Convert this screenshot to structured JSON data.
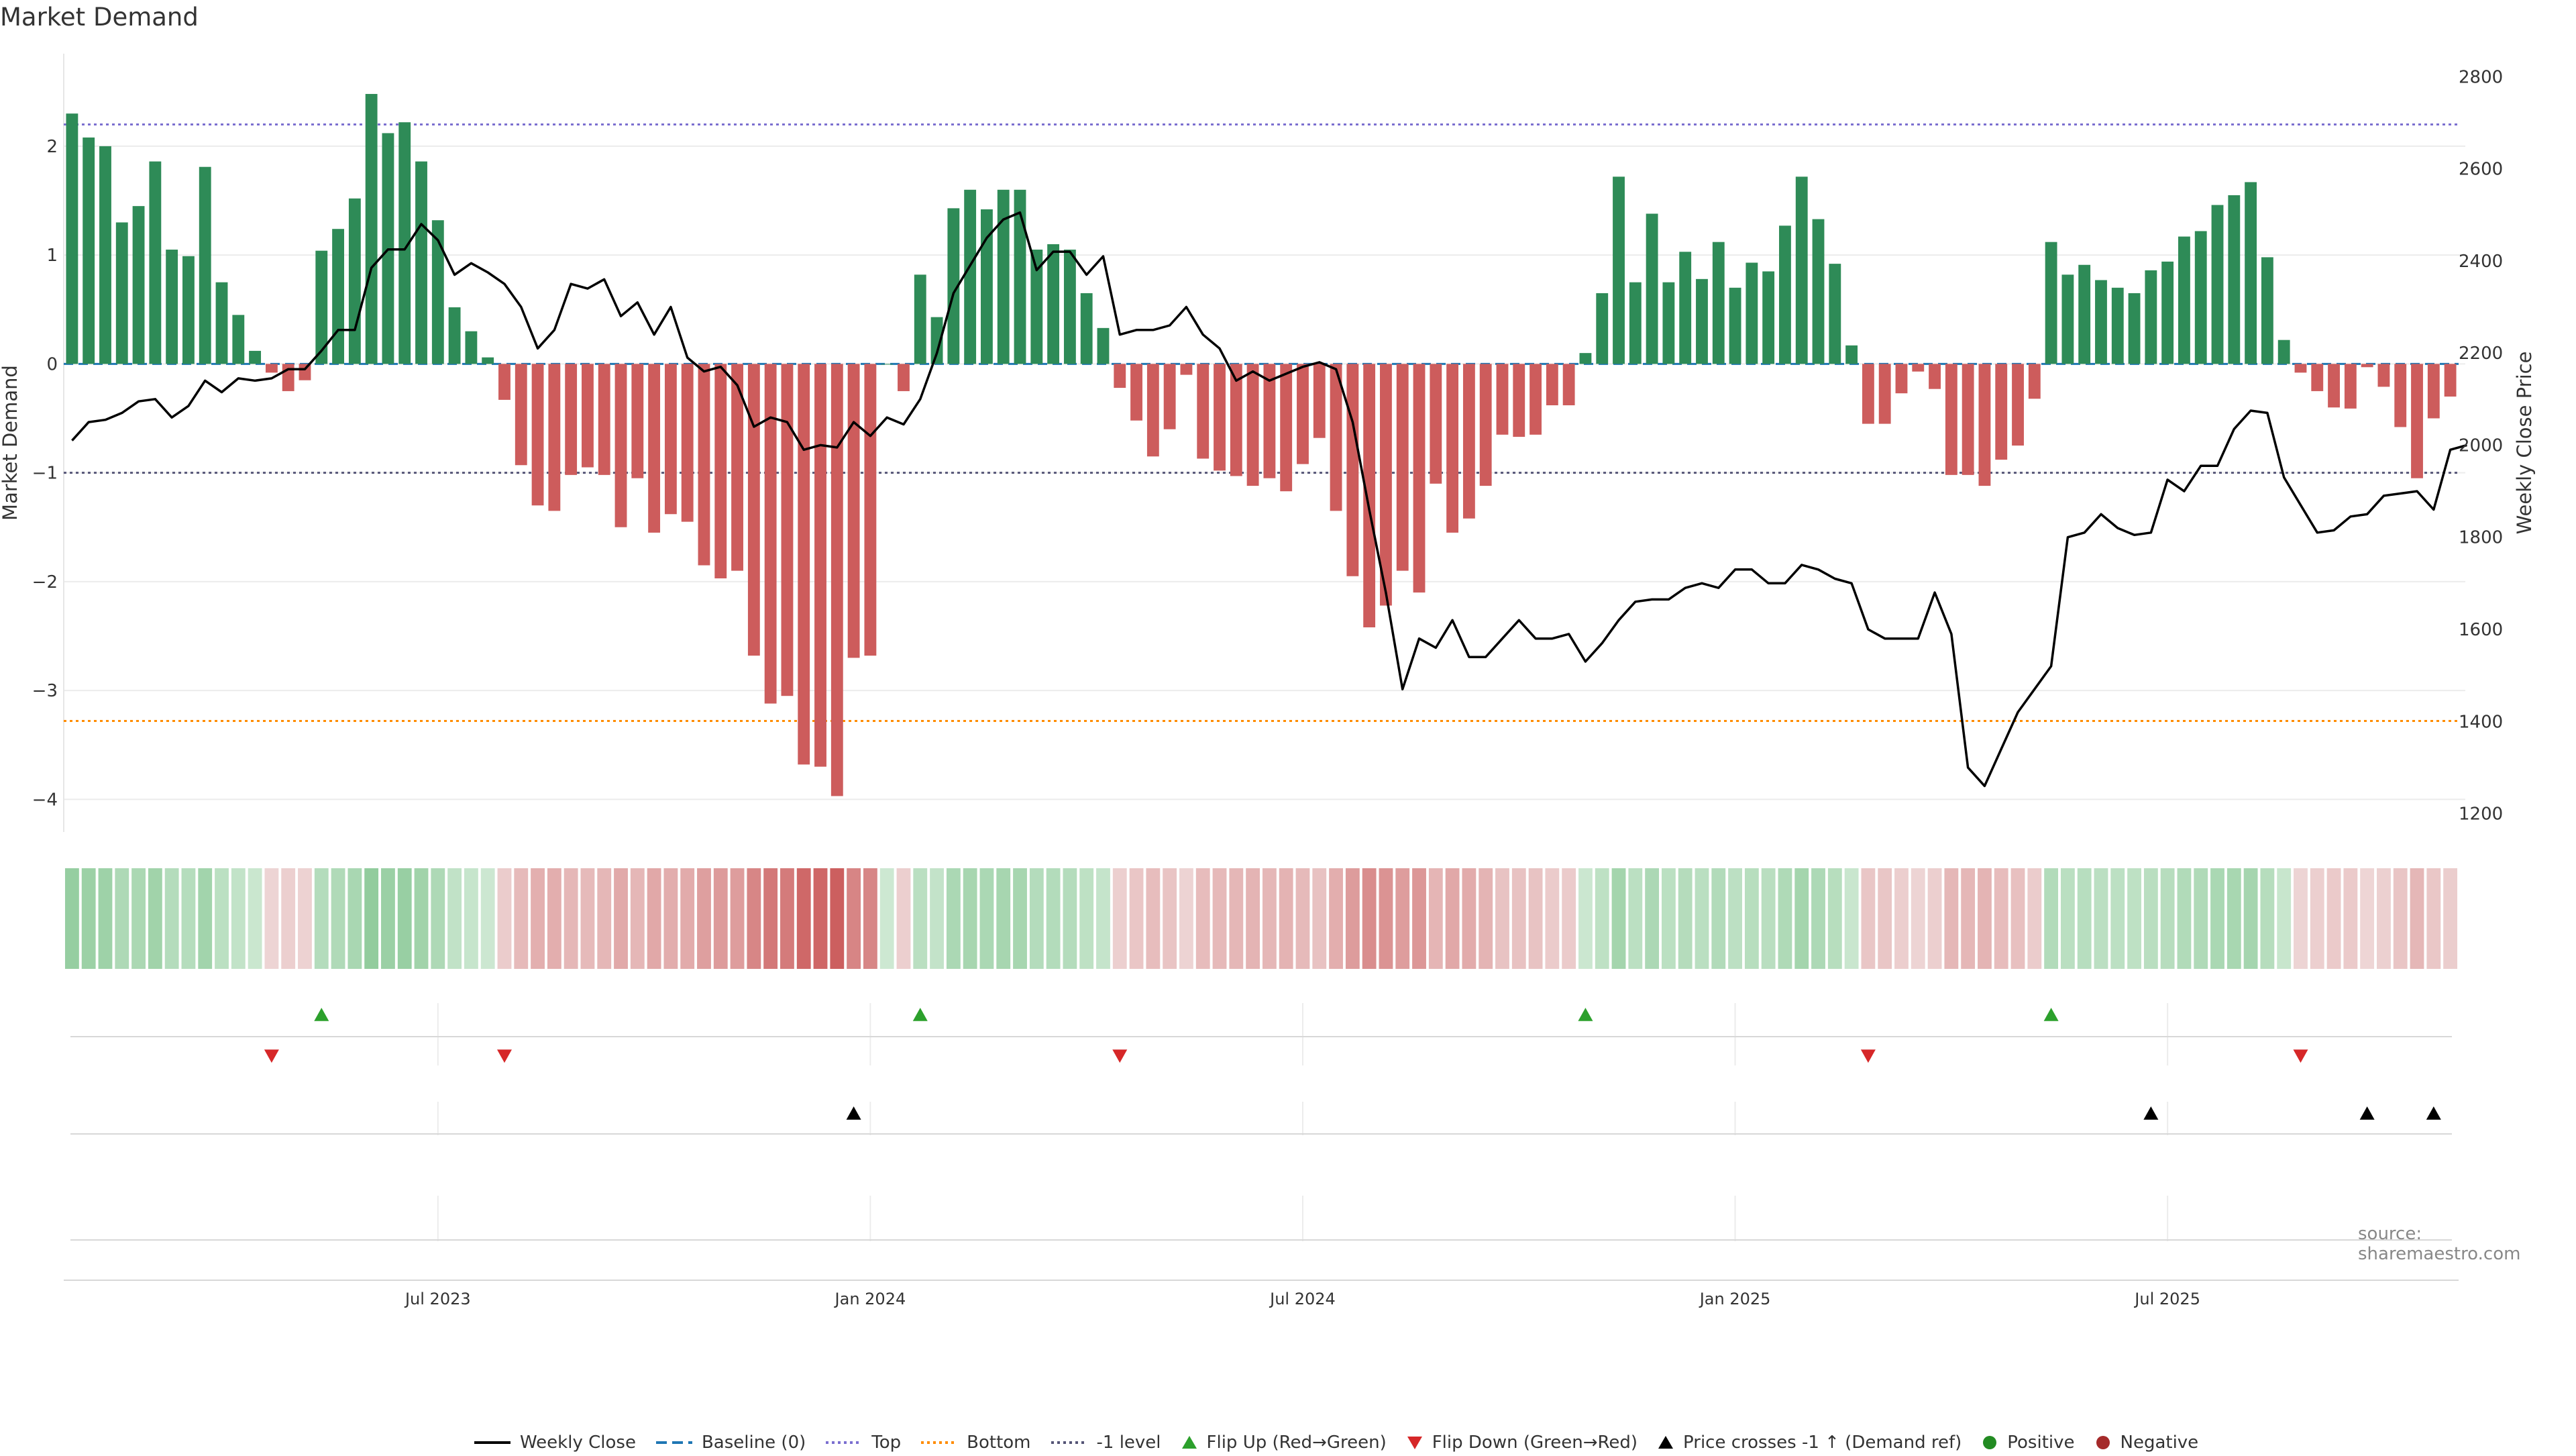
{
  "title": "Market Demand",
  "source": "source: sharemaestro.com",
  "colors": {
    "positive_bar": "#2e8b57",
    "negative_bar": "#cd5c5c",
    "price_line": "#000000",
    "baseline": "#1f77b4",
    "top_line": "#7b6fd0",
    "bottom_line": "#ff8c00",
    "minus1_line": "#555577",
    "flip_up": "#2ca02c",
    "flip_down": "#d62728",
    "cross": "#000000"
  },
  "legend": [
    {
      "key": "weekly_close",
      "label": "Weekly Close",
      "type": "line",
      "color": "#000000"
    },
    {
      "key": "baseline",
      "label": "Baseline (0)",
      "type": "dash",
      "color": "#1f77b4"
    },
    {
      "key": "top",
      "label": "Top",
      "type": "dot",
      "color": "#7b6fd0"
    },
    {
      "key": "bottom",
      "label": "Bottom",
      "type": "dot",
      "color": "#ff8c00"
    },
    {
      "key": "minus1",
      "label": "-1 level",
      "type": "dot",
      "color": "#555577"
    },
    {
      "key": "flip_up",
      "label": "Flip Up (Red→Green)",
      "type": "tri-up",
      "color": "#2ca02c"
    },
    {
      "key": "flip_down",
      "label": "Flip Down (Green→Red)",
      "type": "tri-down",
      "color": "#d62728"
    },
    {
      "key": "cross",
      "label": "Price crosses -1 ↑ (Demand ref)",
      "type": "tri-up",
      "color": "#000000"
    },
    {
      "key": "positive",
      "label": "Positive",
      "type": "circle",
      "color": "#228b22"
    },
    {
      "key": "negative",
      "label": "Negative",
      "type": "circle",
      "color": "#a52a2a"
    }
  ],
  "chart_data": {
    "type": "bar+line",
    "title": "Market Demand",
    "ylabel": "Market Demand",
    "y2label": "Weekly Close Price",
    "ylim": [
      -4.3,
      2.85
    ],
    "y2lim": [
      1160,
      2850
    ],
    "yticks": [
      2,
      1,
      0,
      -1,
      -2,
      -3,
      -4
    ],
    "ytick_labels": [
      "2",
      "1",
      "0",
      "−1",
      "−2",
      "−3",
      "−4"
    ],
    "y2ticks": [
      2800,
      2600,
      2400,
      2200,
      2000,
      1800,
      1600,
      1400,
      1200
    ],
    "y2tick_labels": [
      "2800",
      "2600",
      "2400",
      "2200",
      "2000",
      "1800",
      "1600",
      "1400",
      "1200"
    ],
    "top_level": 2.2,
    "bottom_level": -3.28,
    "minus1_level": -1.0,
    "xtick_labels": [
      {
        "label": "Jul 2023",
        "week": 22
      },
      {
        "label": "Jan 2024",
        "week": 48
      },
      {
        "label": "Jul 2024",
        "week": 74
      },
      {
        "label": "Jan 2025",
        "week": 100
      },
      {
        "label": "Jul 2025",
        "week": 126
      }
    ],
    "n_weeks": 144,
    "demand": [
      2.3,
      2.08,
      2.0,
      1.3,
      1.45,
      1.86,
      1.05,
      0.99,
      1.81,
      0.75,
      0.45,
      0.12,
      -0.08,
      -0.25,
      -0.15,
      1.04,
      1.24,
      1.52,
      2.48,
      2.12,
      2.22,
      1.86,
      1.32,
      0.52,
      0.3,
      0.06,
      -0.33,
      -0.93,
      -1.3,
      -1.35,
      -1.02,
      -0.95,
      -1.02,
      -1.5,
      -1.05,
      -1.55,
      -1.38,
      -1.45,
      -1.85,
      -1.97,
      -1.9,
      -2.68,
      -3.12,
      -3.05,
      -3.68,
      -3.7,
      -3.97,
      -2.7,
      -2.68,
      0.0,
      -0.25,
      0.82,
      0.43,
      1.43,
      1.6,
      1.42,
      1.6,
      1.6,
      1.05,
      1.1,
      1.05,
      0.65,
      0.33,
      -0.22,
      -0.52,
      -0.85,
      -0.6,
      -0.1,
      -0.87,
      -0.98,
      -1.03,
      -1.12,
      -1.05,
      -1.17,
      -0.92,
      -0.68,
      -1.35,
      -1.95,
      -2.42,
      -2.22,
      -1.9,
      -2.1,
      -1.1,
      -1.55,
      -1.42,
      -1.12,
      -0.65,
      -0.67,
      -0.65,
      -0.38,
      -0.38,
      0.1,
      0.65,
      1.72,
      0.75,
      1.38,
      0.75,
      1.03,
      0.78,
      1.12,
      0.7,
      0.93,
      0.85,
      1.27,
      1.72,
      1.33,
      0.92,
      0.17,
      -0.55,
      -0.55,
      -0.27,
      -0.07,
      -0.23,
      -1.02,
      -1.02,
      -1.12,
      -0.88,
      -0.75,
      -0.32,
      1.12,
      0.82,
      0.91,
      0.77,
      0.7,
      0.65,
      0.86,
      0.94,
      1.17,
      1.22,
      1.46,
      1.55,
      1.67,
      0.98,
      0.22,
      -0.08,
      -0.25,
      -0.4,
      -0.41,
      -0.03,
      -0.21,
      -0.58,
      -1.05,
      -0.5,
      -0.3
    ],
    "price": [
      2010,
      2050,
      2055,
      2070,
      2095,
      2100,
      2060,
      2085,
      2140,
      2115,
      2145,
      2140,
      2145,
      2165,
      2165,
      2205,
      2250,
      2250,
      2385,
      2425,
      2425,
      2480,
      2445,
      2370,
      2395,
      2375,
      2350,
      2300,
      2210,
      2250,
      2350,
      2340,
      2360,
      2280,
      2310,
      2240,
      2300,
      2190,
      2160,
      2170,
      2130,
      2040,
      2060,
      2050,
      1990,
      2000,
      1995,
      2050,
      2020,
      2060,
      2045,
      2100,
      2200,
      2330,
      2390,
      2450,
      2490,
      2505,
      2380,
      2420,
      2420,
      2370,
      2410,
      2240,
      2250,
      2250,
      2260,
      2300,
      2240,
      2210,
      2140,
      2160,
      2140,
      2155,
      2170,
      2180,
      2165,
      2050,
      1860,
      1680,
      1470,
      1580,
      1560,
      1620,
      1540,
      1540,
      1580,
      1620,
      1580,
      1580,
      1590,
      1530,
      1570,
      1620,
      1660,
      1665,
      1665,
      1690,
      1700,
      1690,
      1730,
      1730,
      1700,
      1700,
      1740,
      1730,
      1710,
      1700,
      1600,
      1580,
      1580,
      1580,
      1680,
      1590,
      1300,
      1260,
      1340,
      1420,
      1470,
      1520,
      1800,
      1810,
      1850,
      1820,
      1805,
      1810,
      1925,
      1900,
      1955,
      1955,
      2035,
      2075,
      2070,
      1930,
      1870,
      1810,
      1815,
      1845,
      1850,
      1890,
      1895,
      1900,
      1860,
      1990,
      2000
    ],
    "flip_up_weeks": [
      15,
      51,
      91,
      119
    ],
    "flip_down_weeks": [
      12,
      26,
      63,
      108,
      134
    ],
    "cross_weeks": [
      47,
      125,
      138,
      142
    ],
    "series": [
      {
        "name": "Market Demand",
        "axis": "left"
      },
      {
        "name": "Weekly Close",
        "axis": "right"
      }
    ]
  }
}
